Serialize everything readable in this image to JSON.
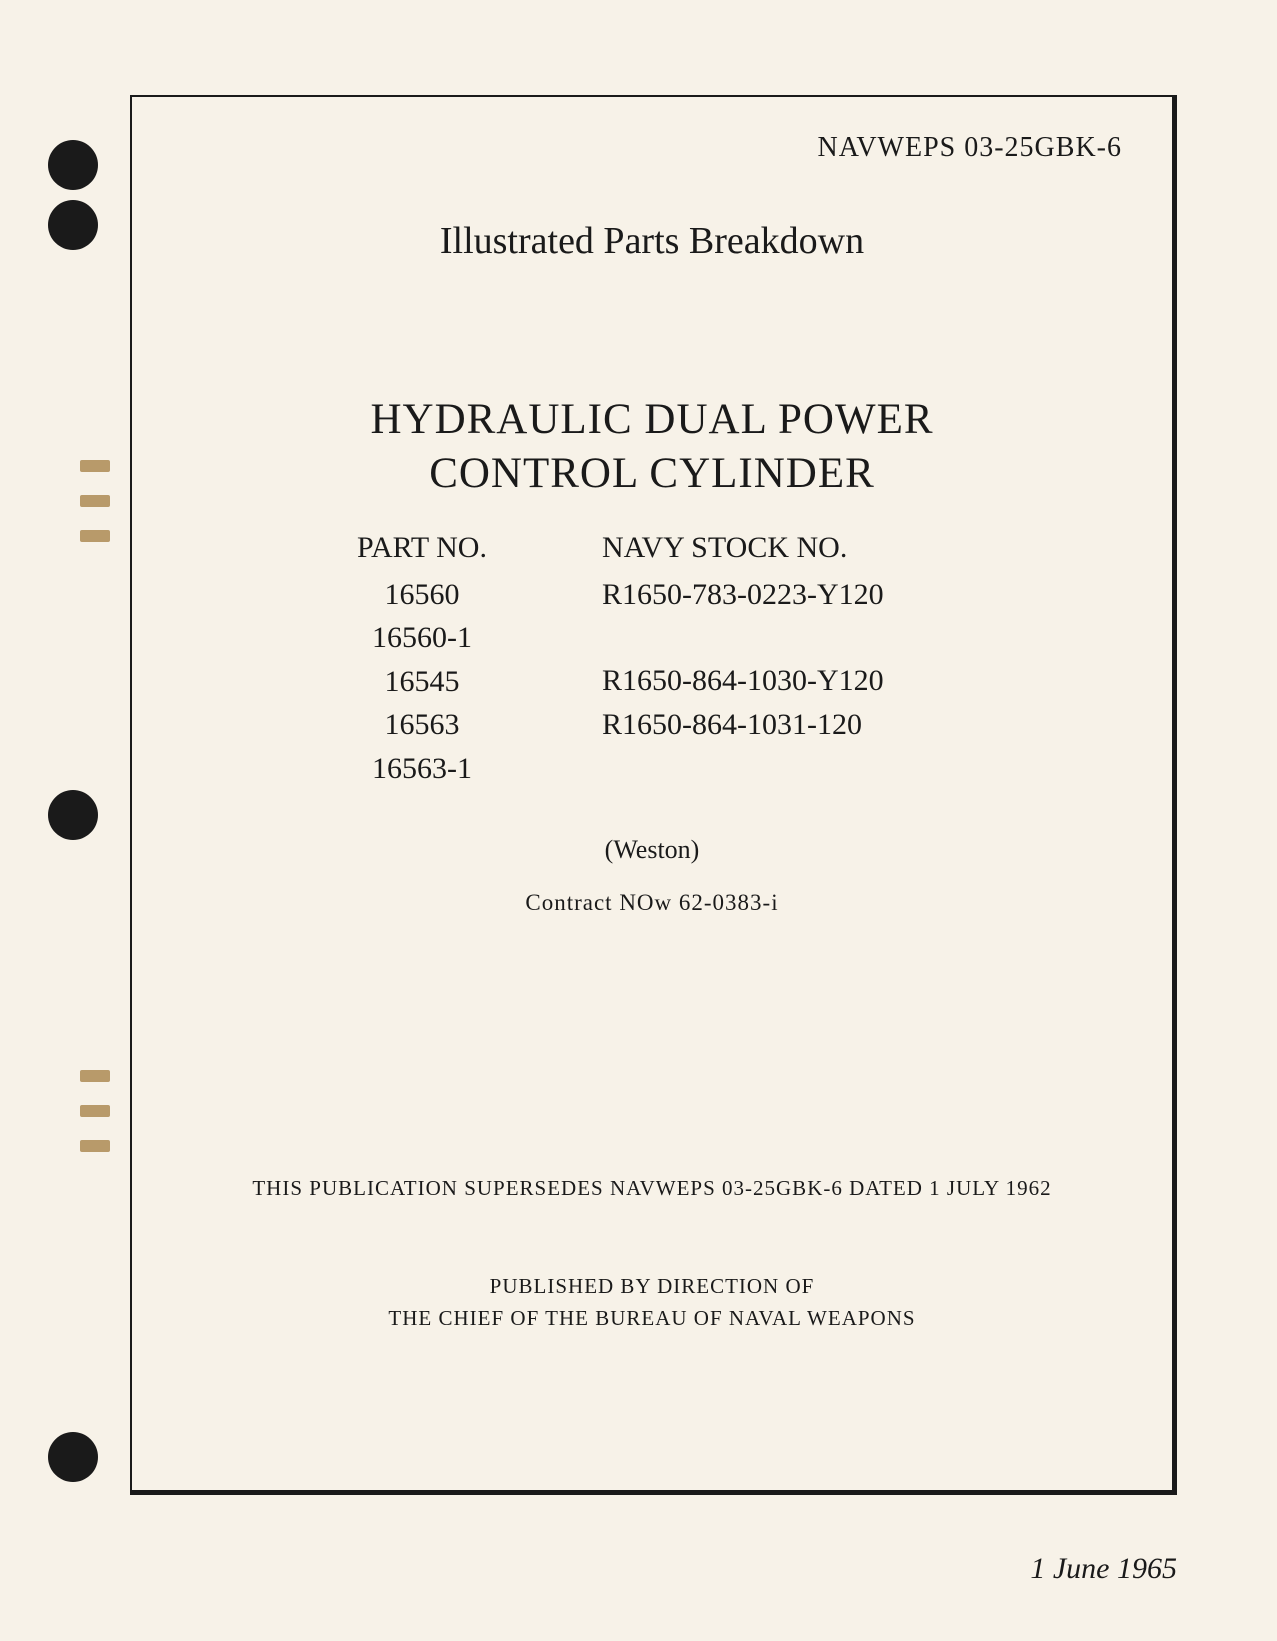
{
  "document_number": "NAVWEPS 03-25GBK-6",
  "subtitle": "Illustrated Parts Breakdown",
  "main_title_line1": "HYDRAULIC DUAL POWER",
  "main_title_line2": "CONTROL CYLINDER",
  "part_header": "PART NO.",
  "stock_header": "NAVY STOCK NO.",
  "parts": [
    {
      "part": "16560",
      "stock": "R1650-783-0223-Y120"
    },
    {
      "part": "16560-1",
      "stock": ""
    },
    {
      "part": "16545",
      "stock": "R1650-864-1030-Y120"
    },
    {
      "part": "16563",
      "stock": "R1650-864-1031-120"
    },
    {
      "part": "16563-1",
      "stock": ""
    }
  ],
  "manufacturer": "(Weston)",
  "contract": "Contract NOw 62-0383-i",
  "supersedes": "THIS PUBLICATION SUPERSEDES NAVWEPS 03-25GBK-6 DATED 1 JULY 1962",
  "published_line1": "PUBLISHED BY DIRECTION OF",
  "published_line2": "THE CHIEF OF THE BUREAU OF NAVAL WEAPONS",
  "date": "1 June 1965",
  "colors": {
    "page_bg": "#f7f2e8",
    "text": "#1a1a1a",
    "hole": "#1a1a1a",
    "tear": "#b89a6a"
  },
  "typography": {
    "doc_number_size": 28,
    "subtitle_size": 38,
    "title_size": 43,
    "parts_size": 30,
    "manufacturer_size": 26,
    "contract_size": 23,
    "footer_size": 21,
    "date_size": 30
  }
}
